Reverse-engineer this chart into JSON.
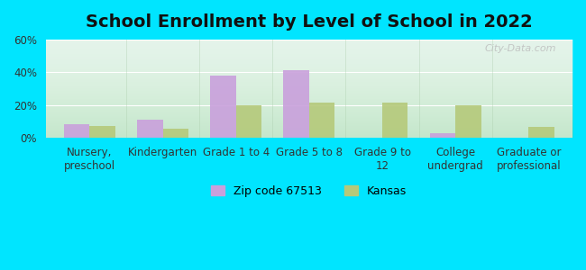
{
  "title": "School Enrollment by Level of School in 2022",
  "categories": [
    "Nursery,\npreschool",
    "Kindergarten",
    "Grade 1 to 4",
    "Grade 5 to 8",
    "Grade 9 to\n12",
    "College\nundergrad",
    "Graduate or\nprofessional"
  ],
  "zip_values": [
    8,
    11,
    38,
    41,
    0,
    3,
    0
  ],
  "kansas_values": [
    7,
    5.5,
    20,
    21.5,
    21.5,
    20,
    6.5
  ],
  "zip_color": "#c9a0dc",
  "kansas_color": "#b5c97a",
  "ylim": [
    0,
    60
  ],
  "yticks": [
    0,
    20,
    40,
    60
  ],
  "ytick_labels": [
    "0%",
    "20%",
    "40%",
    "60%"
  ],
  "background_outer": "#00e5ff",
  "watermark": "City-Data.com",
  "legend_zip_label": "Zip code 67513",
  "legend_kansas_label": "Kansas",
  "title_fontsize": 14,
  "tick_fontsize": 8.5,
  "bar_width": 0.35
}
